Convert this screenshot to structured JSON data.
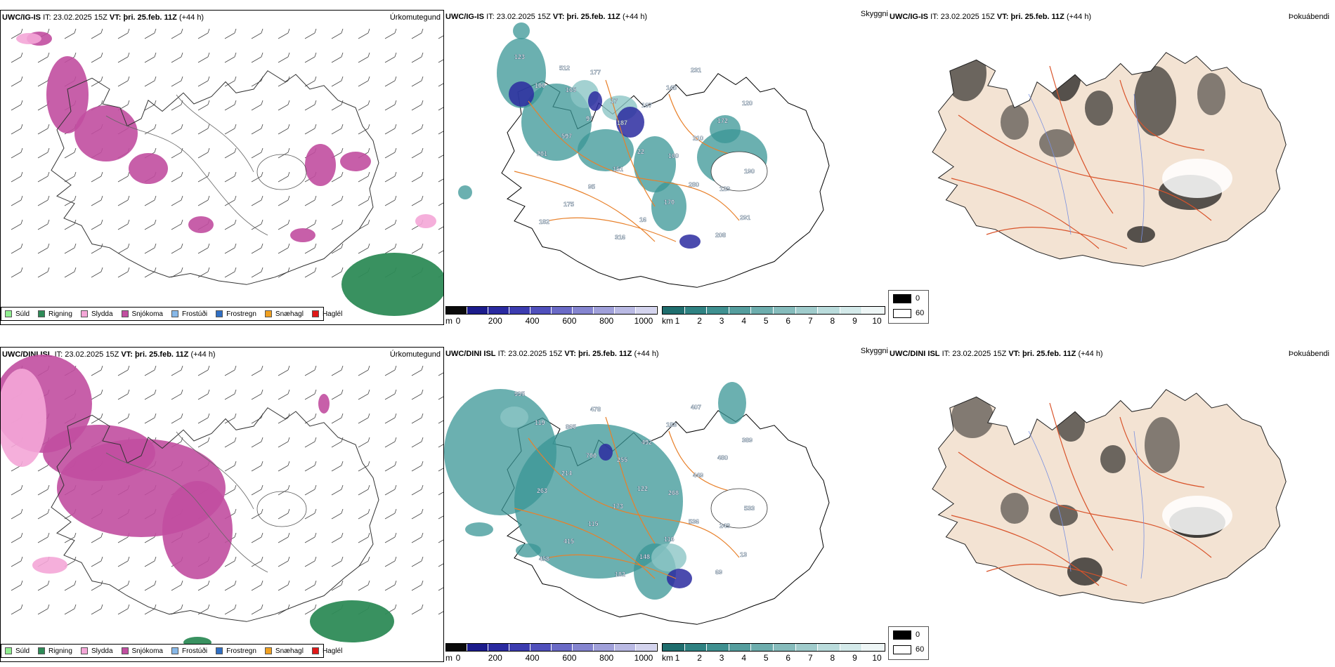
{
  "rows": [
    {
      "model": "UWC/IG-IS",
      "it_label": "IT:",
      "it_value": "23.02.2025 15Z",
      "vt_label": "VT:",
      "vt_value": "þri. 25.feb. 11Z",
      "lead": "(+44 h)",
      "precip_title": "Úrkomutegund",
      "cloud_title": "Skyggni",
      "fog_title": "Þokuábendi",
      "snow_labels": [
        "123",
        "165",
        "187",
        "160",
        "129",
        "182",
        "177",
        "167",
        "210",
        "190",
        "175",
        "316",
        "145",
        "172",
        "201",
        "95",
        "16",
        "231",
        "120",
        "597",
        "151",
        "170",
        "208",
        "100",
        "97",
        "22",
        "280",
        "291",
        "512",
        "17"
      ],
      "fog_values": [
        "0",
        "60"
      ]
    },
    {
      "model": "UWC/DINI ISL",
      "it_label": "IT:",
      "it_value": "23.02.2025 15Z",
      "vt_label": "VT:",
      "vt_value": "þri. 25.feb. 11Z",
      "lead": "(+44 h)",
      "precip_title": "Úrkomutegund",
      "cloud_title": "Skyggni",
      "fog_title": "Þokuábendi",
      "snow_labels": [
        "995",
        "865",
        "255",
        "268",
        "243",
        "458",
        "478",
        "492",
        "449",
        "533",
        "415",
        "182",
        "183",
        "480",
        "263",
        "115",
        "148",
        "407",
        "389",
        "214",
        "173",
        "116",
        "69",
        "119",
        "700",
        "122",
        "536",
        "13"
      ],
      "fog_values": [
        "0",
        "60"
      ]
    }
  ],
  "precip_legend": [
    {
      "label": "Súld",
      "color": "#90ee90"
    },
    {
      "label": "Rigning",
      "color": "#2e8b57"
    },
    {
      "label": "Slydda",
      "color": "#f4a6d7"
    },
    {
      "label": "Snjókoma",
      "color": "#c14ea0"
    },
    {
      "label": "Frostúði",
      "color": "#87b8e8"
    },
    {
      "label": "Frostregn",
      "color": "#2f6fc4"
    },
    {
      "label": "Snæhagl",
      "color": "#f0a020"
    },
    {
      "label": "Haglél",
      "color": "#e01818"
    }
  ],
  "cloudbase_bar": {
    "unit": "m",
    "ticks": [
      "0",
      "200",
      "400",
      "600",
      "800",
      "1000"
    ],
    "colors": [
      "#0a0a0a",
      "#1c1c8c",
      "#2a2aa0",
      "#3c3cb0",
      "#5050bc",
      "#6a6ac6",
      "#8585d0",
      "#a0a0da",
      "#babae4",
      "#d4d4ee"
    ]
  },
  "visibility_bar": {
    "unit": "km",
    "ticks": [
      "1",
      "2",
      "3",
      "4",
      "5",
      "6",
      "7",
      "8",
      "9",
      "10"
    ],
    "colors": [
      "#1f6e6e",
      "#2f8282",
      "#3f9090",
      "#559e9e",
      "#6dadad",
      "#86bcbc",
      "#a0cccc",
      "#badcdc",
      "#d4eaea",
      "#eef6f6"
    ]
  },
  "map_colors": {
    "snow": "#c14ea0",
    "sleet": "#f4a6d7",
    "rain": "#2e8b57",
    "teal": "#3a9595",
    "teal_light": "#8cc6c6",
    "navy": "#2c2ca0",
    "roads": "#e8802a",
    "rivers": "#7a90e0",
    "land": "#f3e3d3",
    "coast": "#222222"
  }
}
